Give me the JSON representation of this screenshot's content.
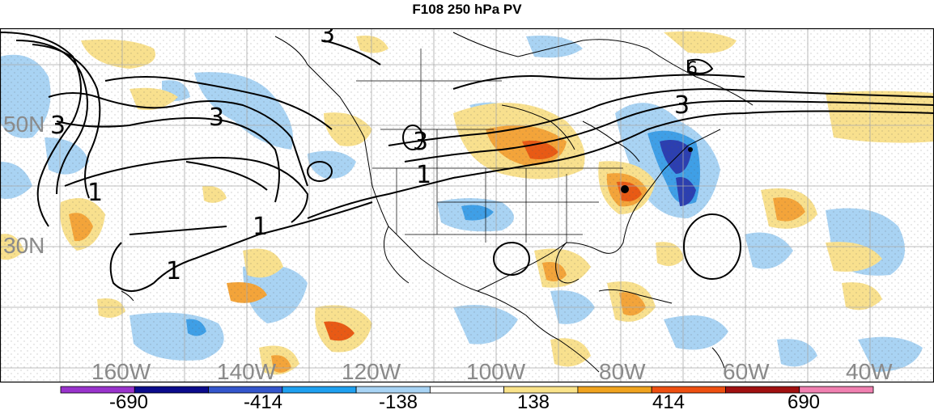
{
  "title": "F108 250 hPa PV",
  "lat_labels": [
    "50N",
    "30N"
  ],
  "lon_labels": [
    "160W",
    "140W",
    "120W",
    "100W",
    "80W",
    "60W",
    "40W"
  ],
  "contour_labels": [
    "3",
    "3",
    "3",
    "3",
    "3",
    "1",
    "1",
    "1",
    "1",
    "6"
  ],
  "colorbar": {
    "labels": [
      "-690",
      "-414",
      "-138",
      "138",
      "414",
      "690"
    ],
    "colors": [
      "#9933cc",
      "#0b0b8c",
      "#3355cc",
      "#1ea0f0",
      "#a8d4f5",
      "#ffffff",
      "#fae38a",
      "#f0a31e",
      "#ee4f10",
      "#a01010",
      "#f080b0"
    ]
  },
  "colors": {
    "positive_light": "#f8e08e",
    "positive_mid": "#f3a43a",
    "positive_strong": "#e85a15",
    "negative_light": "#a9d3f3",
    "negative_mid": "#3f9fe6",
    "negative_strong": "#2c3fb0",
    "label_gray": "#8a8a8a"
  }
}
